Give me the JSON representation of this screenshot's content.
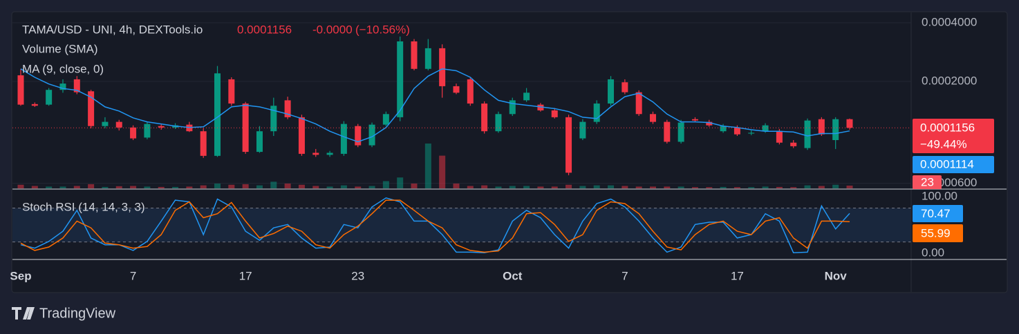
{
  "chart_data": [
    {
      "type": "candlestick",
      "title": "TAMA/USD - UNI, 4h, DEXTools.io",
      "header_change": "-0.0000",
      "header_change_percent": "(−10.56%)",
      "price_change_label": "−49.44%",
      "up_color": "#089981",
      "down_color": "#f23645",
      "log_scale": true,
      "grid": true,
      "ylim": [
        5.65e-05,
        0.000452
      ],
      "yticks": [
        {
          "value": 0.0004,
          "label": "0.0004000"
        },
        {
          "value": 0.0002,
          "label": "0.0002000"
        },
        {
          "value": 6e-05,
          "label": "0.0000600"
        }
      ],
      "categories": [
        "Sep",
        null,
        null,
        null,
        null,
        null,
        null,
        null,
        "7",
        null,
        null,
        null,
        null,
        null,
        null,
        null,
        "17",
        null,
        null,
        null,
        null,
        null,
        null,
        null,
        "23",
        null,
        null,
        null,
        null,
        null,
        null,
        null,
        null,
        null,
        null,
        "Oct",
        null,
        null,
        null,
        null,
        null,
        null,
        null,
        "7",
        null,
        null,
        null,
        null,
        null,
        null,
        null,
        "17",
        null,
        null,
        null,
        null,
        null,
        null,
        "Nov",
        null
      ],
      "open": [
        0.000215,
        0.000153,
        0.000152,
        0.000181,
        0.000205,
        0.000178,
        0.000118,
        0.000124,
        0.000116,
        0.000103,
        0.000118,
        0.000116,
        0.00012,
        0.000111,
        8.3e-05,
        0.000205,
        0.000154,
        8.7e-05,
        0.000111,
        0.00016,
        0.000131,
        8.6e-05,
        8.4e-05,
        8.5e-05,
        0.000118,
        9.4e-05,
        0.00012,
        0.000131,
        0.000321,
        0.000232,
        0.000296,
        0.000189,
        0.000205,
        0.000154,
        0.000111,
        0.000136,
        0.00016,
        0.000152,
        0.000142,
        0.000131,
        0.000102,
        0.000124,
        0.000154,
        0.000198,
        0.000176,
        0.000136,
        0.000124,
        9.8e-05,
        0.000128,
        0.000124,
        0.000111,
        0.000116,
        0.000108,
        0.000111,
        0.000111,
        9.7e-05,
        9.1e-05,
        0.000128,
        0.0001,
        0.000128
      ],
      "high": [
        0.000232,
        0.000156,
        0.000185,
        0.000205,
        0.000213,
        0.000181,
        0.000131,
        0.000127,
        0.000119,
        0.000124,
        0.000121,
        0.000122,
        0.000124,
        0.000115,
        0.00024,
        0.00021,
        0.000157,
        0.000118,
        0.000165,
        0.000167,
        0.000135,
        9e-05,
        8.8e-05,
        0.000125,
        0.000121,
        0.000123,
        0.00014,
        0.00034,
        0.00033,
        0.00033,
        0.00031,
        0.000195,
        0.00021,
        0.000158,
        0.00014,
        0.000165,
        0.000185,
        0.000155,
        0.000146,
        0.000135,
        0.000128,
        0.00016,
        0.000213,
        0.000205,
        0.00018,
        0.00014,
        0.000127,
        0.000127,
        0.000131,
        0.000127,
        0.000121,
        0.000119,
        0.000112,
        0.000122,
        0.000114,
        0.0001,
        0.000129,
        0.000131,
        0.000131,
        0.000129
      ],
      "low": [
        0.00015,
        0.000148,
        0.00015,
        0.000175,
        0.000172,
        0.000115,
        0.000115,
        0.000112,
        0.0001,
        0.000101,
        0.000113,
        0.000114,
        0.00011,
        8.1e-05,
        8.2e-05,
        0.00015,
        8.5e-05,
        8.6e-05,
        0.000105,
        0.000128,
        8.3e-05,
        8.2e-05,
        8.2e-05,
        8.3e-05,
        9.2e-05,
        9.2e-05,
        0.000118,
        0.000125,
        0.000228,
        0.000228,
        0.000165,
        0.000172,
        0.00015,
        0.000108,
        0.000109,
        0.000133,
        0.000157,
        0.00014,
        0.000129,
        6.6e-05,
        0.0001,
        0.000121,
        0.00015,
        0.000172,
        0.000133,
        0.000121,
        9.6e-05,
        9.6e-05,
        0.000124,
        0.000117,
        0.000109,
        0.000105,
        0.000106,
        0.000109,
        9.5e-05,
        9.1e-05,
        8.9e-05,
        0.000105,
        9e-05,
        0.000113
      ],
      "close": [
        0.000152,
        0.00015,
        0.000181,
        0.000195,
        0.000176,
        0.000118,
        0.000124,
        0.000116,
        0.000102,
        0.000121,
        0.000116,
        0.000119,
        0.000111,
        8.3e-05,
        0.00022,
        0.000154,
        8.7e-05,
        0.000111,
        0.00015,
        0.000131,
        8.5e-05,
        8.4e-05,
        8.6e-05,
        0.000121,
        9.4e-05,
        0.00012,
        0.000136,
        0.000321,
        0.000232,
        0.000296,
        0.000189,
        0.000175,
        0.000154,
        0.000111,
        0.000136,
        0.00016,
        0.000175,
        0.000142,
        0.000131,
        6.8e-05,
        0.000124,
        0.000154,
        0.000205,
        0.000176,
        0.000136,
        0.000124,
        9.8e-05,
        0.000123,
        0.000126,
        0.000119,
        0.000118,
        0.000107,
        0.000109,
        0.000119,
        9.7e-05,
        9.3e-05,
        0.000126,
        0.000107,
        0.000128,
        0.0001156
      ],
      "volume": {
        "name": "Volume (SMA)",
        "color": "#f7525f",
        "values": [
          30,
          20,
          15,
          15,
          20,
          35,
          12,
          18,
          20,
          15,
          12,
          12,
          15,
          25,
          40,
          30,
          35,
          25,
          55,
          40,
          30,
          20,
          15,
          25,
          15,
          20,
          60,
          90,
          40,
          370,
          270,
          40,
          20,
          25,
          15,
          20,
          20,
          15,
          15,
          30,
          20,
          25,
          25,
          20,
          15,
          15,
          15,
          15,
          10,
          10,
          12,
          10,
          10,
          15,
          12,
          10,
          25,
          20,
          30,
          23
        ]
      },
      "ma": {
        "name": "MA (9, close, 0)",
        "color": "#2196f3",
        "values": [
          0.000232,
          0.00021,
          0.000194,
          0.000184,
          0.00018,
          0.000166,
          0.000148,
          0.000141,
          0.00013,
          0.000124,
          0.000121,
          0.000118,
          0.000116,
          0.000117,
          0.000131,
          0.000148,
          0.000151,
          0.000148,
          0.000142,
          0.000136,
          0.000129,
          0.000121,
          0.000111,
          0.000104,
          9.8e-05,
          0.000104,
          0.000116,
          0.000142,
          0.000184,
          0.000213,
          0.000232,
          0.000227,
          0.00021,
          0.000181,
          0.00016,
          0.000154,
          0.000151,
          0.000148,
          0.000145,
          0.00014,
          0.000131,
          0.000129,
          0.000148,
          0.000167,
          0.000174,
          0.000157,
          0.000136,
          0.000124,
          0.000124,
          0.000123,
          0.000118,
          0.000116,
          0.000113,
          0.000111,
          0.000111,
          0.00011,
          0.000105,
          0.000108,
          0.000108,
          0.0001114
        ]
      }
    },
    {
      "type": "line",
      "title": "Stoch RSI (14, 14, 3, 3)",
      "ylim": [
        -11,
        110
      ],
      "yticks": [
        {
          "value": 100,
          "label": "100.00"
        },
        {
          "value": 0,
          "label": "0.00"
        }
      ],
      "band": [
        20,
        80
      ],
      "series": [
        {
          "name": "K",
          "color": "#2196f3",
          "values": [
            15,
            9,
            21,
            39,
            76,
            27,
            15,
            15,
            5,
            21,
            57,
            94,
            91,
            33,
            96,
            82,
            39,
            23,
            45,
            51,
            27,
            9,
            11,
            51,
            45,
            82,
            98,
            91,
            57,
            57,
            33,
            2,
            2,
            1,
            6,
            57,
            76,
            63,
            33,
            9,
            57,
            88,
            96,
            82,
            57,
            27,
            2,
            11,
            51,
            55,
            55,
            27,
            33,
            70,
            57,
            1,
            2,
            84,
            43,
            70.47
          ]
        },
        {
          "name": "D",
          "color": "#ff6d00",
          "values": [
            18,
            5,
            11,
            27,
            57,
            45,
            18,
            15,
            9,
            12,
            33,
            76,
            91,
            63,
            70,
            90,
            57,
            27,
            35,
            48,
            39,
            15,
            9,
            33,
            48,
            70,
            94,
            94,
            76,
            57,
            45,
            15,
            5,
            2,
            4,
            27,
            70,
            72,
            51,
            21,
            33,
            76,
            91,
            88,
            70,
            39,
            11,
            6,
            33,
            51,
            57,
            39,
            33,
            57,
            63,
            27,
            9,
            57,
            57,
            55.99
          ]
        }
      ]
    }
  ],
  "footer": {
    "brand": "TradingView"
  }
}
